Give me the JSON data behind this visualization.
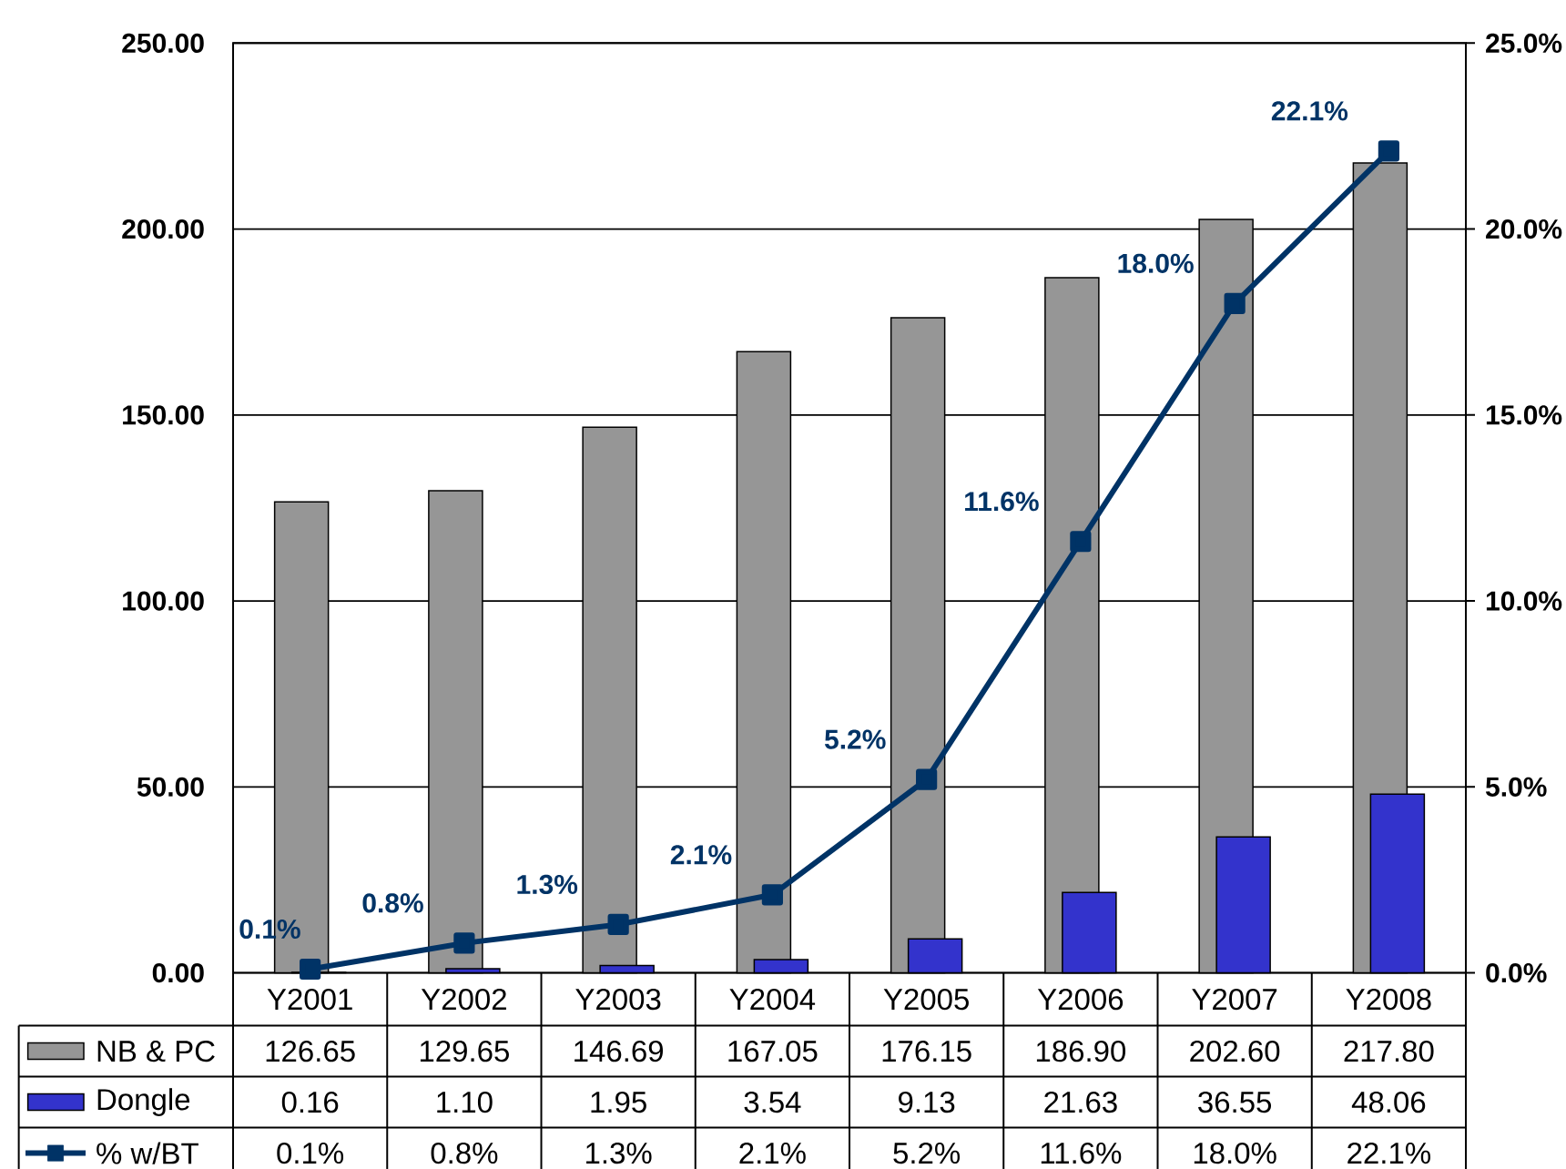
{
  "chart_data": {
    "type": "bar",
    "categories": [
      "Y2001",
      "Y2002",
      "Y2003",
      "Y2004",
      "Y2005",
      "Y2006",
      "Y2007",
      "Y2008"
    ],
    "series": [
      {
        "name": "NB & PC",
        "color": "#969696",
        "values": [
          126.65,
          129.65,
          146.69,
          167.05,
          176.15,
          186.9,
          202.6,
          217.8
        ],
        "value_labels": [
          "126.65",
          "129.65",
          "146.69",
          "167.05",
          "176.15",
          "186.90",
          "202.60",
          "217.80"
        ]
      },
      {
        "name": "Dongle",
        "color": "#3333cc",
        "values": [
          0.16,
          1.1,
          1.95,
          3.54,
          9.13,
          21.63,
          36.55,
          48.06
        ],
        "value_labels": [
          "0.16",
          "1.10",
          "1.95",
          "3.54",
          "9.13",
          "21.63",
          "36.55",
          "48.06"
        ]
      },
      {
        "name": "% w/BT",
        "type": "line",
        "axis": "y2",
        "color": "#003366",
        "marker": "square",
        "values": [
          0.1,
          0.8,
          1.3,
          2.1,
          5.2,
          11.6,
          18.0,
          22.1
        ],
        "value_labels": [
          "0.1%",
          "0.8%",
          "1.3%",
          "2.1%",
          "5.2%",
          "11.6%",
          "18.0%",
          "22.1%"
        ]
      }
    ],
    "ylim": [
      0,
      250
    ],
    "yticks": [
      {
        "value": 0,
        "label": "0.00"
      },
      {
        "value": 50,
        "label": "50.00"
      },
      {
        "value": 100,
        "label": "100.00"
      },
      {
        "value": 150,
        "label": "150.00"
      },
      {
        "value": 200,
        "label": "200.00"
      },
      {
        "value": 250,
        "label": "250.00"
      }
    ],
    "y2lim": [
      0,
      25
    ],
    "y2ticks": [
      {
        "value": 0,
        "label": "0.0%"
      },
      {
        "value": 5,
        "label": "5.0%"
      },
      {
        "value": 10,
        "label": "10.0%"
      },
      {
        "value": 15,
        "label": "15.0%"
      },
      {
        "value": 20,
        "label": "20.0%"
      },
      {
        "value": 25,
        "label": "25.0%"
      }
    ],
    "grid": "y",
    "legend": "bottom"
  }
}
